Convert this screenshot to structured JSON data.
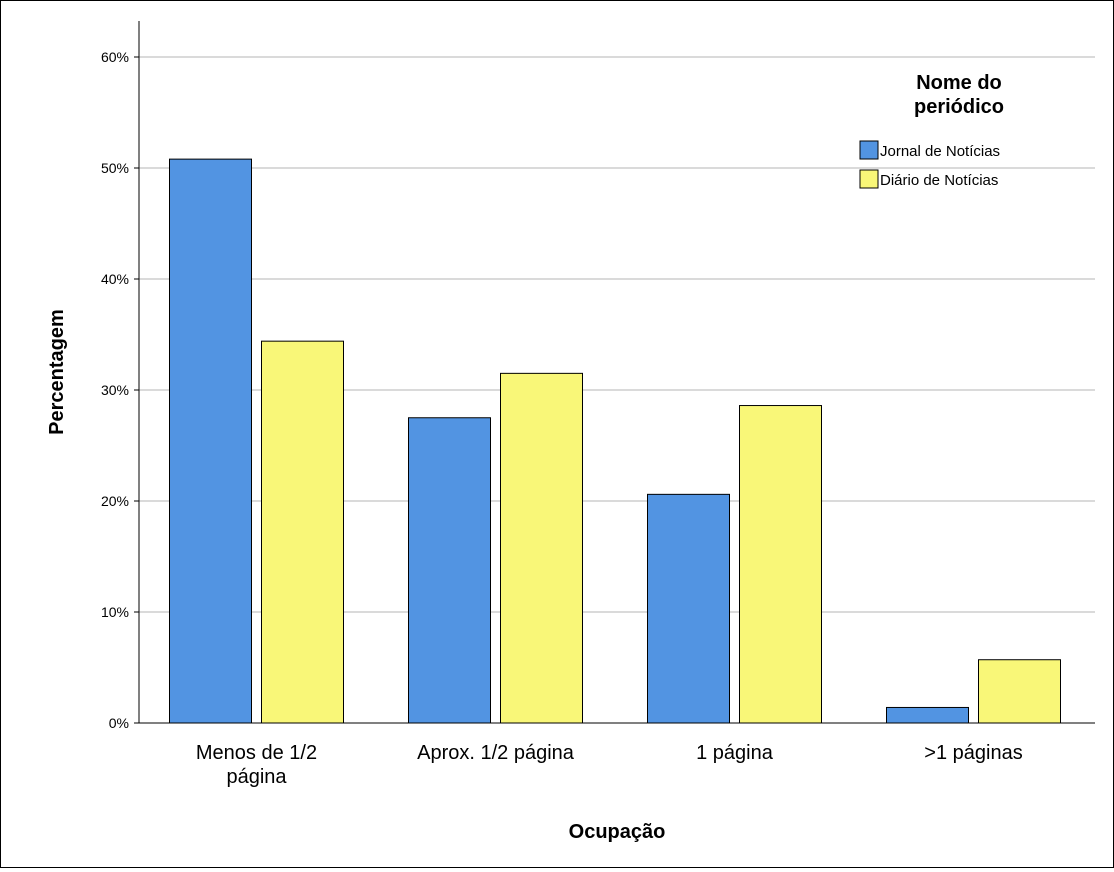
{
  "chart_data": {
    "type": "bar",
    "categories": [
      "Menos de 1/2\npágina",
      "Aprox. 1/2 página",
      "1 página",
      ">1 páginas"
    ],
    "series": [
      {
        "name": "Jornal de Notícias",
        "values": [
          50.8,
          27.5,
          20.6,
          1.4
        ]
      },
      {
        "name": "Diário de Notícias",
        "values": [
          34.4,
          31.5,
          28.6,
          5.7
        ]
      }
    ],
    "ylim": [
      0,
      60
    ],
    "yticks": [
      0,
      10,
      20,
      30,
      40,
      50,
      60
    ],
    "ytick_labels": [
      "0%",
      "10%",
      "20%",
      "30%",
      "40%",
      "50%",
      "60%"
    ],
    "xlabel": "Ocupação",
    "ylabel": "Percentagem",
    "legend": {
      "title_line1": "Nome do",
      "title_line2": "periódico",
      "placement": "top-right"
    },
    "grid": true
  },
  "colors": {
    "series": [
      "#5294e2",
      "#f9f778"
    ],
    "grid": "#b4b4b4",
    "axis": "#000000"
  }
}
